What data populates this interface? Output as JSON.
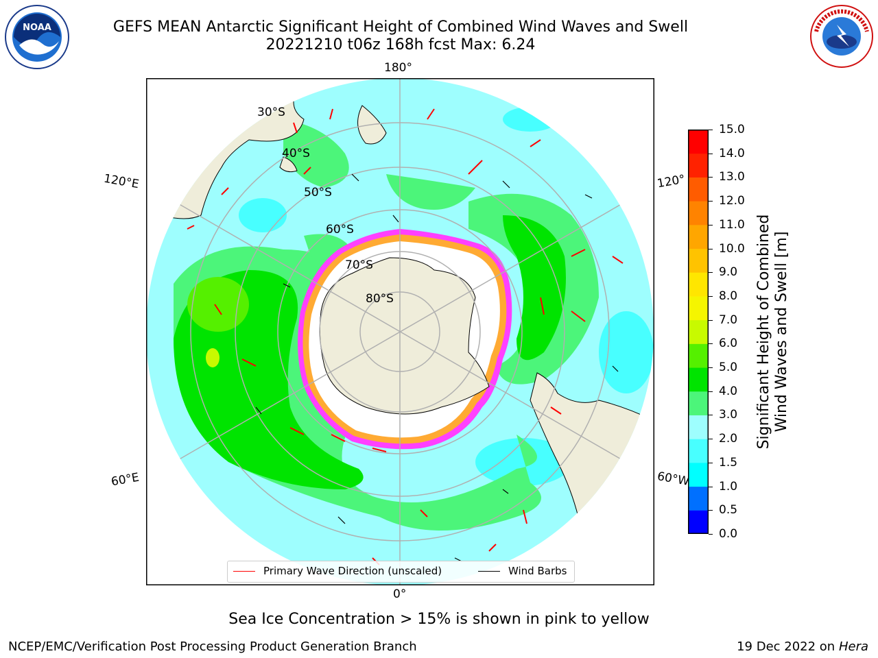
{
  "header": {
    "title_line1": "GEFS MEAN Antarctic Significant Height of Combined Wind Waves and Swell",
    "title_line2": "20221210 t06z 168h fcst   Max: 6.24"
  },
  "logos": {
    "left": "noaa-logo",
    "right": "national-weather-service-logo"
  },
  "map": {
    "projection": "south-polar-stereographic",
    "longitude_labels": {
      "top": "180°",
      "bottom": "0°",
      "left_upper": "120°E",
      "left_lower": "60°E",
      "right_upper": "120°",
      "right_lower": "60°W"
    },
    "latitude_labels": [
      "30°S",
      "40°S",
      "50°S",
      "60°S",
      "70°S",
      "80°S"
    ],
    "colors": {
      "ocean_low": "#9efefe",
      "wave_3_4": "#4cf57a",
      "wave_4_5": "#00e400",
      "wave_5_6": "#55f000",
      "land": "#efedda",
      "ice": "#ffffff",
      "ice_edge": "#ff40ff",
      "ice_mid": "#ffaa33"
    }
  },
  "colorbar": {
    "label": "Significant Height of Combined Wind Waves and Swell [m]",
    "label_line1": "Significant Height of Combined",
    "label_line2": "Wind Waves and Swell [m]",
    "ticks": [
      "15.0",
      "14.0",
      "13.0",
      "12.0",
      "11.0",
      "10.0",
      "9.0",
      "8.0",
      "7.0",
      "6.0",
      "5.0",
      "4.0",
      "3.0",
      "2.0",
      "1.5",
      "1.0",
      "0.5",
      "0.0"
    ],
    "colors_bottom_to_top": [
      "#0000ff",
      "#0070ff",
      "#00ffff",
      "#48ffff",
      "#9efefe",
      "#4cf57a",
      "#00e400",
      "#55f000",
      "#c8fa00",
      "#f5f500",
      "#ffe600",
      "#ffc300",
      "#ffa600",
      "#ff8300",
      "#ff5c00",
      "#ff2200",
      "#ff0000"
    ]
  },
  "legend": {
    "items": [
      {
        "label": "Primary Wave Direction (unscaled)",
        "color": "#ff0000"
      },
      {
        "label": "Wind Barbs",
        "color": "#000000"
      }
    ]
  },
  "caption": "Sea Ice Concentration > 15% is shown in pink to yellow",
  "footer": {
    "left": "NCEP/EMC/Verification Post Processing Product Generation Branch",
    "right_date": "19 Dec 2022 on",
    "right_host": "Hera"
  }
}
